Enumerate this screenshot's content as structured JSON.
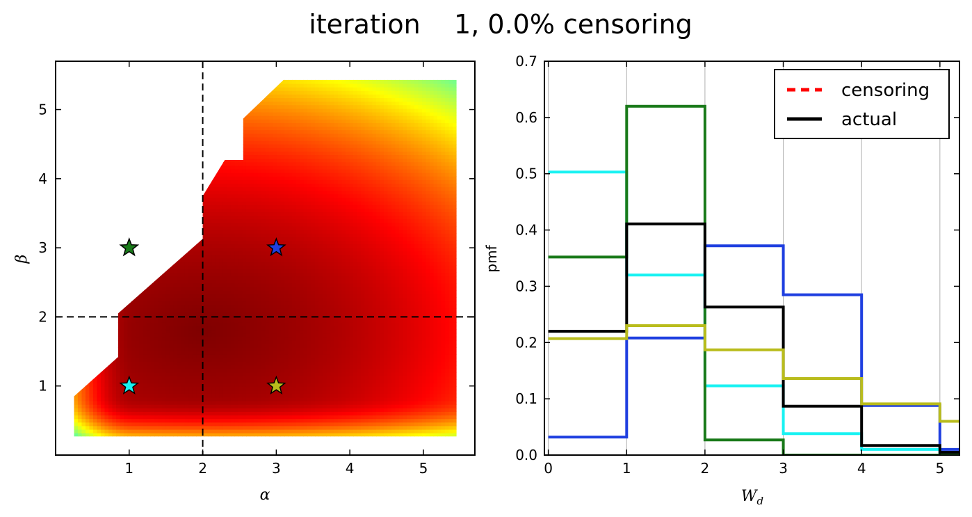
{
  "figure": {
    "title": "iteration    1, 0.0% censoring"
  },
  "chart_data": [
    {
      "type": "heatmap",
      "panel": "left",
      "xlabel": "α",
      "ylabel": "β",
      "xlim": [
        0,
        5.7
      ],
      "ylim": [
        0,
        5.7
      ],
      "xticks": [
        1,
        2,
        3,
        4,
        5
      ],
      "yticks": [
        1,
        2,
        3,
        4,
        5
      ],
      "domain_polygon": [
        [
          0.25,
          0.27
        ],
        [
          5.45,
          0.27
        ],
        [
          5.45,
          5.43
        ],
        [
          3.1,
          5.43
        ],
        [
          2.55,
          4.87
        ],
        [
          2.55,
          4.27
        ],
        [
          2.3,
          4.27
        ],
        [
          2,
          3.75
        ],
        [
          2,
          3.13
        ],
        [
          0.85,
          2.05
        ],
        [
          0.85,
          1.42
        ],
        [
          0.25,
          0.85
        ]
      ],
      "field_peak": [
        2.0,
        1.8
      ],
      "colormap": "jet",
      "reference_lines": {
        "x": 2,
        "y": 2
      },
      "markers": [
        {
          "name": "green",
          "alpha": 1,
          "beta": 3,
          "color": "#1a7a1a"
        },
        {
          "name": "blue",
          "alpha": 3,
          "beta": 3,
          "color": "#1f3fe0"
        },
        {
          "name": "cyan",
          "alpha": 1,
          "beta": 1,
          "color": "#19f2f2"
        },
        {
          "name": "olive",
          "alpha": 3,
          "beta": 1,
          "color": "#b9bc1c"
        }
      ]
    },
    {
      "type": "line",
      "panel": "right",
      "step": "post",
      "xlabel": "W_d",
      "ylabel": "pmf",
      "xlim": [
        -0.05,
        5.25
      ],
      "ylim": [
        0.0,
        0.7
      ],
      "xticks": [
        0,
        1,
        2,
        3,
        4,
        5
      ],
      "yticks": [
        0.0,
        0.1,
        0.2,
        0.3,
        0.4,
        0.5,
        0.6,
        0.7
      ],
      "grid": "vertical",
      "legend": {
        "position": "top-right",
        "entries": [
          {
            "label": "censoring",
            "color": "#ff0000",
            "style": "dashed"
          },
          {
            "label": "actual",
            "color": "#000000",
            "style": "solid"
          }
        ]
      },
      "x": [
        0,
        1,
        2,
        3,
        4,
        5,
        6
      ],
      "series": [
        {
          "color": "#1f3fe0",
          "values": [
            0.032,
            0.208,
            0.372,
            0.285,
            0.088,
            0.01,
            0.01
          ]
        },
        {
          "color": "#19f2f2",
          "values": [
            0.503,
            0.32,
            0.123,
            0.038,
            0.01,
            0.005,
            0.005
          ]
        },
        {
          "color": "#1a7a1a",
          "values": [
            0.352,
            0.62,
            0.027,
            0.0,
            0.0,
            0.0,
            0.0
          ]
        },
        {
          "color": "#000000",
          "values": [
            0.22,
            0.411,
            0.263,
            0.087,
            0.017,
            0.005,
            0.005
          ]
        },
        {
          "color": "#b9bc1c",
          "values": [
            0.207,
            0.23,
            0.187,
            0.136,
            0.091,
            0.06,
            0.06
          ]
        }
      ]
    }
  ]
}
